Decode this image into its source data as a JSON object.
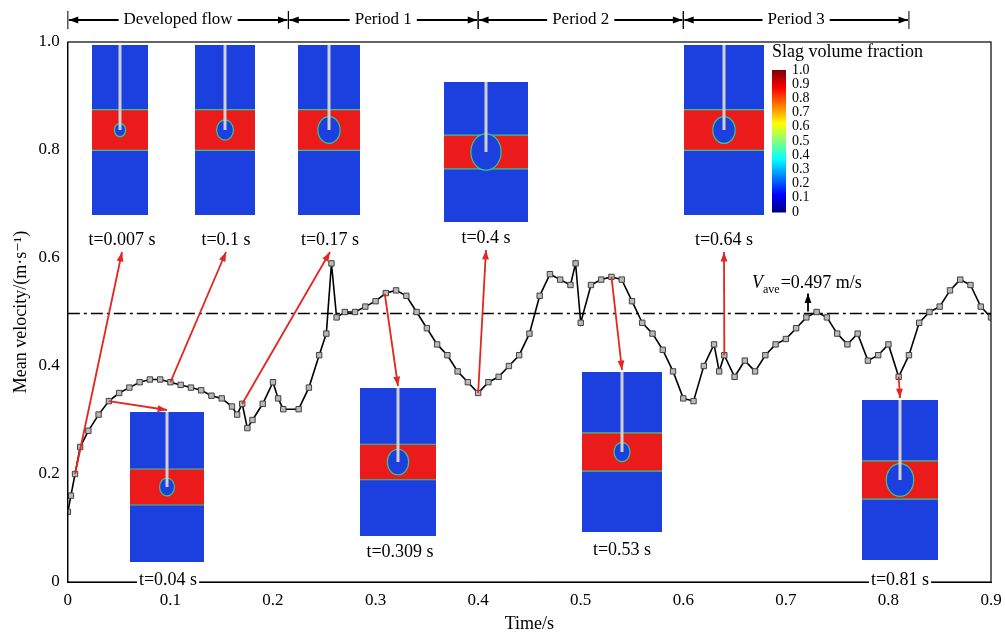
{
  "chart_data": {
    "type": "line",
    "x_label": "Time/s",
    "y_label": "Mean velocity/(m·s⁻¹)",
    "xlim": [
      0,
      0.9
    ],
    "xticks": [
      0,
      0.1,
      0.2,
      0.3,
      0.4,
      0.5,
      0.6,
      0.7,
      0.8,
      0.9
    ],
    "ylim": [
      0,
      1
    ],
    "yticks": [
      0,
      0.2,
      0.4,
      0.6,
      0.8,
      {
        "value": 1,
        "label": "1.0"
      }
    ],
    "grid": false,
    "x": [
      0,
      0.003,
      0.007,
      0.012,
      0.02,
      0.03,
      0.04,
      0.05,
      0.06,
      0.07,
      0.08,
      0.09,
      0.1,
      0.11,
      0.12,
      0.13,
      0.14,
      0.15,
      0.16,
      0.165,
      0.17,
      0.175,
      0.18,
      0.19,
      0.2,
      0.205,
      0.21,
      0.225,
      0.235,
      0.245,
      0.252,
      0.257,
      0.262,
      0.27,
      0.28,
      0.29,
      0.3,
      0.31,
      0.32,
      0.33,
      0.34,
      0.35,
      0.36,
      0.37,
      0.38,
      0.39,
      0.4,
      0.41,
      0.42,
      0.43,
      0.44,
      0.45,
      0.46,
      0.47,
      0.48,
      0.49,
      0.495,
      0.5,
      0.51,
      0.52,
      0.53,
      0.54,
      0.55,
      0.56,
      0.57,
      0.58,
      0.59,
      0.6,
      0.61,
      0.62,
      0.63,
      0.635,
      0.64,
      0.65,
      0.66,
      0.67,
      0.68,
      0.69,
      0.7,
      0.71,
      0.72,
      0.73,
      0.74,
      0.75,
      0.76,
      0.77,
      0.78,
      0.79,
      0.8,
      0.81,
      0.82,
      0.83,
      0.84,
      0.85,
      0.86,
      0.87,
      0.88,
      0.89,
      0.9
    ],
    "series": [
      {
        "color": "#000000",
        "marker": "square",
        "values": [
          0.13,
          0.16,
          0.2,
          0.25,
          0.28,
          0.31,
          0.335,
          0.35,
          0.36,
          0.37,
          0.375,
          0.375,
          0.37,
          0.365,
          0.36,
          0.355,
          0.345,
          0.34,
          0.325,
          0.31,
          0.33,
          0.285,
          0.3,
          0.33,
          0.37,
          0.34,
          0.32,
          0.32,
          0.36,
          0.42,
          0.46,
          0.59,
          0.49,
          0.5,
          0.5,
          0.51,
          0.52,
          0.535,
          0.54,
          0.53,
          0.5,
          0.47,
          0.44,
          0.42,
          0.39,
          0.37,
          0.35,
          0.37,
          0.38,
          0.4,
          0.42,
          0.46,
          0.53,
          0.57,
          0.56,
          0.55,
          0.59,
          0.48,
          0.55,
          0.56,
          0.565,
          0.56,
          0.52,
          0.48,
          0.46,
          0.43,
          0.39,
          0.34,
          0.335,
          0.4,
          0.44,
          0.39,
          0.42,
          0.38,
          0.41,
          0.39,
          0.42,
          0.44,
          0.45,
          0.47,
          0.49,
          0.5,
          0.49,
          0.46,
          0.44,
          0.46,
          0.41,
          0.42,
          0.44,
          0.38,
          0.42,
          0.48,
          0.5,
          0.51,
          0.54,
          0.56,
          0.55,
          0.51,
          0.49
        ]
      }
    ],
    "average_line": {
      "value": 0.497,
      "label": "V",
      "label_subscript": "ave",
      "label_suffix": "=0.497 m/s",
      "line_style": "dashdot"
    },
    "periods": [
      {
        "label": "Developed flow",
        "start": 0,
        "end": 0.215
      },
      {
        "label": "Period 1",
        "start": 0.215,
        "end": 0.4
      },
      {
        "label": "Period 2",
        "start": 0.4,
        "end": 0.6
      },
      {
        "label": "Period 3",
        "start": 0.6,
        "end": 0.82
      }
    ],
    "snapshots": [
      {
        "label": "t=0.007 s",
        "time": 0.007
      },
      {
        "label": "t=0.1 s",
        "time": 0.1
      },
      {
        "label": "t=0.17 s",
        "time": 0.17
      },
      {
        "label": "t=0.04 s",
        "time": 0.04
      },
      {
        "label": "t=0.309 s",
        "time": 0.309
      },
      {
        "label": "t=0.4 s",
        "time": 0.4
      },
      {
        "label": "t=0.53 s",
        "time": 0.53
      },
      {
        "label": "t=0.64 s",
        "time": 0.64
      },
      {
        "label": "t=0.81 s",
        "time": 0.81
      }
    ],
    "colorbar": {
      "title": "Slag volume fraction",
      "range": [
        0,
        1
      ],
      "ticks": [
        {
          "value": 1,
          "label": "1.0"
        },
        {
          "value": 0.9,
          "label": "0.9"
        },
        {
          "value": 0.8,
          "label": "0.8"
        },
        {
          "value": 0.7,
          "label": "0.7"
        },
        {
          "value": 0.6,
          "label": "0.6"
        },
        {
          "value": 0.5,
          "label": "0.5"
        },
        {
          "value": 0.4,
          "label": "0.4"
        },
        {
          "value": 0.3,
          "label": "0.3"
        },
        {
          "value": 0.2,
          "label": "0.2"
        },
        {
          "value": 0.1,
          "label": "0.1"
        },
        0
      ]
    }
  }
}
